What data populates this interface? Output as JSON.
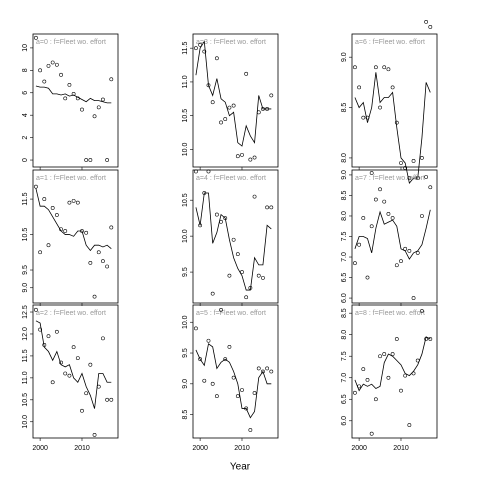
{
  "chart_data": {
    "type": "scatter",
    "xlabel": "Year",
    "x": [
      1999,
      2000,
      2001,
      2002,
      2003,
      2004,
      2005,
      2006,
      2007,
      2008,
      2009,
      2010,
      2011,
      2012,
      2013,
      2014,
      2015,
      2016,
      2017
    ],
    "xlim": [
      1998.3,
      2018.6
    ],
    "xticks": [
      2000,
      2010
    ],
    "panels": [
      {
        "title": "a=0 : f=Fleet wo. effort",
        "ylim": [
          -0.62,
          11.24
        ],
        "yticks": [
          0,
          2,
          4,
          6,
          8,
          10
        ],
        "points": [
          10.9,
          8.0,
          7.0,
          8.4,
          8.7,
          8.5,
          7.6,
          5.5,
          6.7,
          5.9,
          5.5,
          4.5,
          0,
          0,
          3.9,
          4.7,
          5.4,
          0,
          7.2
        ],
        "line": [
          6.6,
          6.5,
          6.5,
          6.4,
          5.9,
          5.9,
          5.8,
          5.9,
          5.7,
          5.8,
          5.6,
          5.4,
          5.2,
          5.5,
          5.3,
          5.3,
          5.2,
          5.1,
          5.1
        ]
      },
      {
        "title": "a=1 : f=Fleet wo. effort",
        "ylim": [
          8.57,
          12.32
        ],
        "yticks": [
          {
            "value": 9,
            "label": "9.0"
          },
          9.5,
          10.5,
          11.5
        ],
        "points": [
          11.85,
          10.0,
          11.5,
          10.2,
          11.25,
          11.05,
          10.65,
          10.6,
          11.4,
          11.45,
          11.4,
          10.6,
          10.55,
          9.7,
          8.75,
          10.0,
          9.75,
          9.6,
          10.7
        ],
        "line": [
          11.8,
          11.3,
          11.3,
          11.2,
          11.0,
          10.8,
          10.6,
          10.5,
          10.5,
          10.45,
          10.6,
          10.6,
          10.2,
          10.05,
          10.2,
          10.2,
          10.15,
          10.2,
          10.1
        ]
      },
      {
        "title": "a=2 : f=Fleet wo. effort",
        "ylim": [
          9.63,
          12.66
        ],
        "yticks": [
          {
            "value": 10,
            "label": "10.0"
          },
          10.5,
          {
            "value": 11,
            "label": "11.0"
          },
          11.5,
          {
            "value": 12,
            "label": "12.0"
          },
          12.5
        ],
        "points": [
          12.55,
          12.1,
          11.75,
          11.95,
          10.9,
          12.05,
          11.35,
          11.1,
          11.05,
          11.7,
          11.45,
          10.25,
          10.65,
          11.3,
          9.7,
          10.8,
          11.9,
          10.5,
          10.5
        ],
        "line": [
          12.3,
          12.25,
          11.7,
          11.6,
          11.4,
          11.6,
          11.3,
          11.25,
          11.3,
          11.0,
          10.9,
          11.1,
          10.8,
          10.6,
          10.3,
          11.1,
          11.1,
          10.9,
          10.9
        ]
      },
      {
        "title": "a=3 : f=Fleet wo. effort",
        "ylim": [
          9.74,
          11.71
        ],
        "yticks": [
          {
            "value": 10,
            "label": "10.0"
          },
          10.5,
          {
            "value": 11,
            "label": "11.0"
          },
          11.5
        ],
        "points": [
          11.5,
          11.55,
          11.45,
          10.95,
          10.7,
          11.35,
          10.4,
          10.45,
          10.62,
          10.65,
          9.9,
          9.92,
          11.12,
          9.85,
          9.88,
          10.55,
          10.6,
          10.6,
          10.8
        ],
        "line": [
          11.1,
          11.5,
          11.6,
          10.95,
          10.8,
          11.05,
          10.75,
          10.7,
          10.5,
          10.55,
          10.1,
          10.05,
          10.35,
          10.2,
          10.1,
          10.8,
          10.6,
          10.6,
          10.6
        ]
      },
      {
        "title": "a=4 : f=Fleet wo. effort",
        "ylim": [
          9.07,
          10.92
        ],
        "yticks": [
          9.5,
          {
            "value": 10,
            "label": "10.0"
          },
          10.5
        ],
        "points": [
          10.9,
          10.15,
          10.6,
          10.9,
          9.2,
          10.3,
          10.2,
          10.25,
          9.45,
          9.95,
          9.75,
          9.5,
          9.15,
          9.28,
          10.55,
          9.45,
          9.42,
          10.4,
          10.4
        ],
        "line": [
          10.4,
          10.15,
          10.6,
          10.6,
          9.9,
          10.05,
          10.3,
          10.25,
          9.95,
          9.7,
          9.55,
          9.45,
          9.25,
          9.25,
          9.7,
          9.6,
          9.6,
          10.15,
          10.1
        ]
      },
      {
        "title": "a=5 : f=Fleet wo. effort",
        "ylim": [
          8.12,
          10.28
        ],
        "yticks": [
          8.5,
          {
            "value": 9,
            "label": "9.0"
          },
          9.5,
          {
            "value": 10,
            "label": "10.0"
          }
        ],
        "points": [
          9.9,
          9.4,
          9.05,
          9.7,
          9.0,
          8.8,
          10.2,
          9.4,
          9.6,
          9.1,
          8.8,
          8.9,
          8.6,
          8.25,
          8.85,
          9.25,
          9.2,
          9.25,
          9.2
        ],
        "line": [
          9.55,
          9.4,
          9.3,
          9.65,
          9.6,
          9.25,
          9.35,
          9.4,
          9.35,
          9.2,
          9.0,
          8.6,
          8.6,
          8.45,
          8.55,
          9.1,
          9.2,
          9.0,
          9.0
        ]
      },
      {
        "title": "a=6 : f=Fleet wo. effort",
        "ylim": [
          7.91,
          9.23
        ],
        "yticks": [
          {
            "value": 8,
            "label": "8.0"
          },
          8.5,
          {
            "value": 9,
            "label": "9.0"
          }
        ],
        "points": [
          8.9,
          8.7,
          8.4,
          8.4,
          7.85,
          8.9,
          8.5,
          8.9,
          8.88,
          8.7,
          8.35,
          7.95,
          7.9,
          7.8,
          7.97,
          7.8,
          8.0,
          9.35,
          9.3
        ],
        "line": [
          8.6,
          8.5,
          8.55,
          8.35,
          8.5,
          8.85,
          8.55,
          8.6,
          8.6,
          8.65,
          8.3,
          8.0,
          7.95,
          7.75,
          7.8,
          7.8,
          8.2,
          8.75,
          8.65
        ]
      },
      {
        "title": "a=7 : f=Fleet wo. effort",
        "ylim": [
          5.88,
          9.12
        ],
        "yticks": [
          {
            "value": 6,
            "label": "6.0"
          },
          6.5,
          {
            "value": 7,
            "label": "7.0"
          },
          7.5,
          {
            "value": 8,
            "label": "8.0"
          },
          8.5,
          {
            "value": 9,
            "label": "9.0"
          }
        ],
        "points": [
          6.85,
          7.3,
          7.95,
          6.5,
          7.75,
          8.4,
          8.65,
          8.35,
          8.05,
          7.95,
          6.8,
          6.9,
          7.2,
          7.15,
          6.0,
          7.1,
          8.0,
          8.95,
          8.7
        ],
        "line": [
          7.2,
          7.5,
          7.5,
          7.45,
          7.1,
          7.7,
          8.1,
          7.8,
          7.85,
          7.9,
          7.75,
          7.2,
          7.15,
          6.95,
          7.1,
          7.15,
          7.3,
          7.7,
          8.15
        ]
      },
      {
        "title": "a=8 : f=Fleet wo. effort",
        "ylim": [
          5.6,
          8.69
        ],
        "yticks": [
          {
            "value": 6,
            "label": "6.0"
          },
          6.5,
          {
            "value": 7,
            "label": "7.0"
          },
          7.5,
          {
            "value": 8,
            "label": "8.0"
          },
          8.5
        ],
        "points": [
          6.65,
          6.8,
          7.2,
          6.95,
          5.7,
          6.5,
          7.5,
          7.55,
          7.0,
          7.55,
          7.9,
          6.7,
          7.05,
          5.9,
          7.1,
          7.4,
          8.55,
          7.9,
          7.9
        ],
        "line": [
          6.95,
          6.7,
          6.85,
          6.8,
          6.85,
          6.75,
          6.8,
          7.35,
          7.55,
          7.5,
          7.4,
          7.3,
          7.1,
          7.05,
          7.15,
          7.3,
          7.55,
          7.95,
          7.9
        ]
      }
    ]
  }
}
